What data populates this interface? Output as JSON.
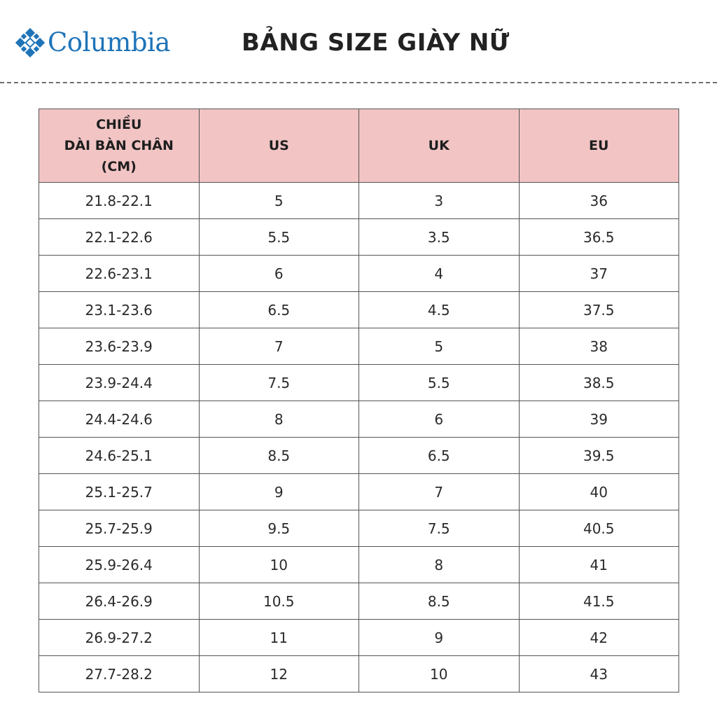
{
  "brand": {
    "name": "Columbia",
    "color": "#1f74b8"
  },
  "title": "BẢNG SIZE GIÀY NỮ",
  "table": {
    "header_color": "#f2c4c4",
    "columns": [
      {
        "lines": [
          "CHIỀU",
          "DÀI BÀN CHÂN",
          "(CM)"
        ]
      },
      {
        "lines": [
          "US"
        ]
      },
      {
        "lines": [
          "UK"
        ]
      },
      {
        "lines": [
          "EU"
        ]
      }
    ],
    "rows": [
      [
        "21.8-22.1",
        "5",
        "3",
        "36"
      ],
      [
        "22.1-22.6",
        "5.5",
        "3.5",
        "36.5"
      ],
      [
        "22.6-23.1",
        "6",
        "4",
        "37"
      ],
      [
        "23.1-23.6",
        "6.5",
        "4.5",
        "37.5"
      ],
      [
        "23.6-23.9",
        "7",
        "5",
        "38"
      ],
      [
        "23.9-24.4",
        "7.5",
        "5.5",
        "38.5"
      ],
      [
        "24.4-24.6",
        "8",
        "6",
        "39"
      ],
      [
        "24.6-25.1",
        "8.5",
        "6.5",
        "39.5"
      ],
      [
        "25.1-25.7",
        "9",
        "7",
        "40"
      ],
      [
        "25.7-25.9",
        "9.5",
        "7.5",
        "40.5"
      ],
      [
        "25.9-26.4",
        "10",
        "8",
        "41"
      ],
      [
        "26.4-26.9",
        "10.5",
        "8.5",
        "41.5"
      ],
      [
        "26.9-27.2",
        "11",
        "9",
        "42"
      ],
      [
        "27.7-28.2",
        "12",
        "10",
        "43"
      ]
    ]
  }
}
